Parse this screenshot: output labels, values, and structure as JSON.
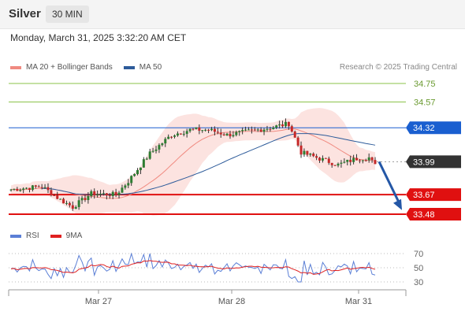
{
  "header": {
    "symbol": "Silver",
    "timeframe": "30 MIN",
    "datetime": "Monday, March 31, 2025 3:32:20 AM CET"
  },
  "legend": {
    "items": [
      {
        "label": "MA 20 + Bollinger Bands",
        "color": "#f08a80"
      },
      {
        "label": "MA 50",
        "color": "#2d5b9a"
      }
    ],
    "credit": "Research © 2025 Trading Central"
  },
  "rsi_legend": {
    "items": [
      {
        "label": "RSI",
        "color": "#5b7fd6"
      },
      {
        "label": "9MA",
        "color": "#e02020"
      }
    ]
  },
  "chart_data": {
    "type": "candlestick",
    "y_range": [
      33.4,
      34.8
    ],
    "levels": [
      {
        "value": "34.75",
        "kind": "resistance",
        "color": "#8bc34a"
      },
      {
        "value": "34.57",
        "kind": "resistance",
        "color": "#8bc34a"
      },
      {
        "value": "34.32",
        "kind": "pivot",
        "color": "#1a5fd0"
      },
      {
        "value": "33.99",
        "kind": "last",
        "color": "#333333"
      },
      {
        "value": "33.67",
        "kind": "support",
        "color": "#e01010"
      },
      {
        "value": "33.48",
        "kind": "support",
        "color": "#e01010"
      }
    ],
    "x_labels": [
      "Mar 27",
      "Mar 28",
      "Mar 31"
    ],
    "forecast_arrow": {
      "from": 33.99,
      "to": 33.52,
      "color": "#2457a6"
    },
    "rsi": {
      "levels": [
        "70",
        "50",
        "30"
      ],
      "range": [
        20,
        80
      ]
    }
  }
}
